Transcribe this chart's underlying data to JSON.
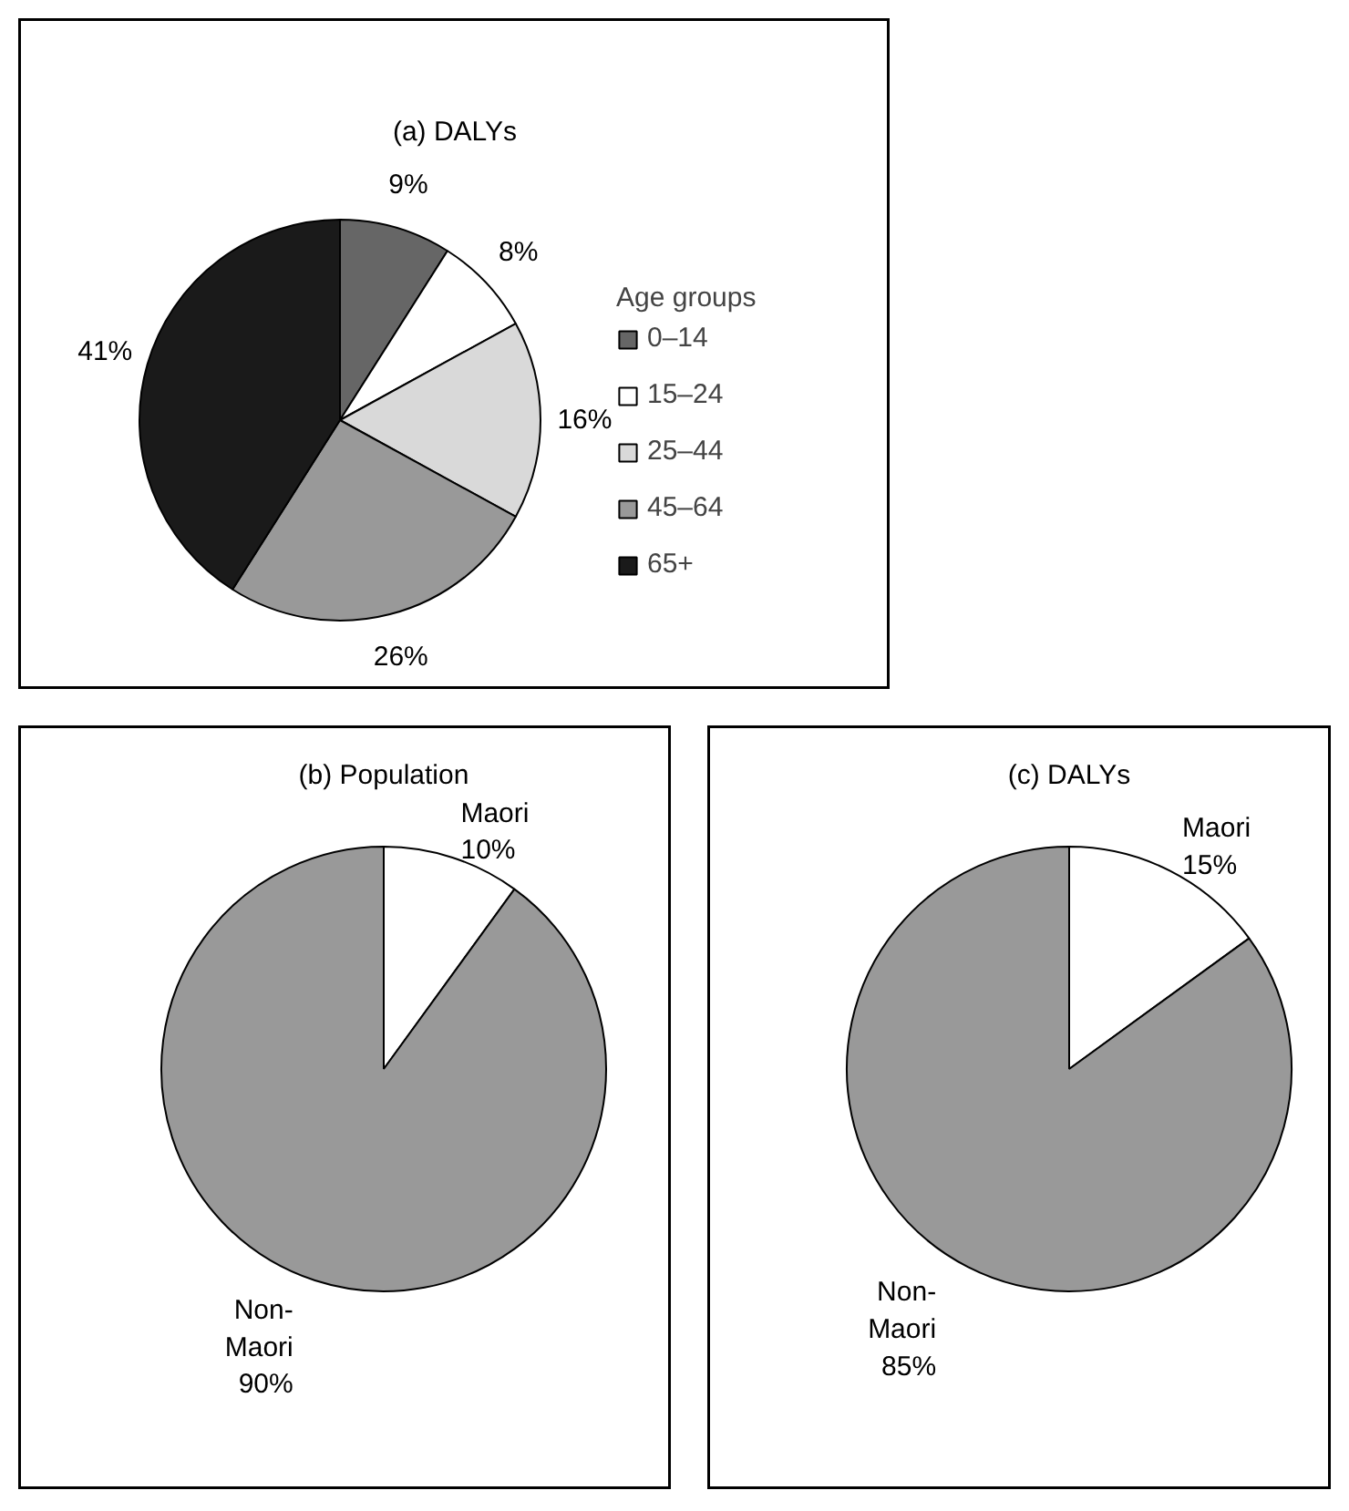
{
  "chart_data": [
    {
      "type": "pie",
      "title": "(a) DALYs",
      "legend_title": "Age groups",
      "legend": "right",
      "categories": [
        "0–14",
        "15–24",
        "25–44",
        "45–64",
        "65+"
      ],
      "values": [
        9,
        8,
        16,
        26,
        41
      ],
      "value_labels": [
        "9%",
        "8%",
        "16%",
        "26%",
        "41%"
      ],
      "colors": [
        "#666666",
        "#ffffff",
        "#d9d9d9",
        "#999999",
        "#1a1a1a"
      ]
    },
    {
      "type": "pie",
      "title": "(b) Population",
      "legend": false,
      "categories": [
        "Maori",
        "Non-Maori"
      ],
      "values": [
        10,
        90
      ],
      "value_labels": [
        "10%",
        "90%"
      ],
      "colors": [
        "#ffffff",
        "#999999"
      ]
    },
    {
      "type": "pie",
      "title": "(c) DALYs",
      "legend": false,
      "categories": [
        "Maori",
        "Non-Maori"
      ],
      "values": [
        15,
        85
      ],
      "value_labels": [
        "15%",
        "85%"
      ],
      "colors": [
        "#ffffff",
        "#999999"
      ]
    }
  ]
}
